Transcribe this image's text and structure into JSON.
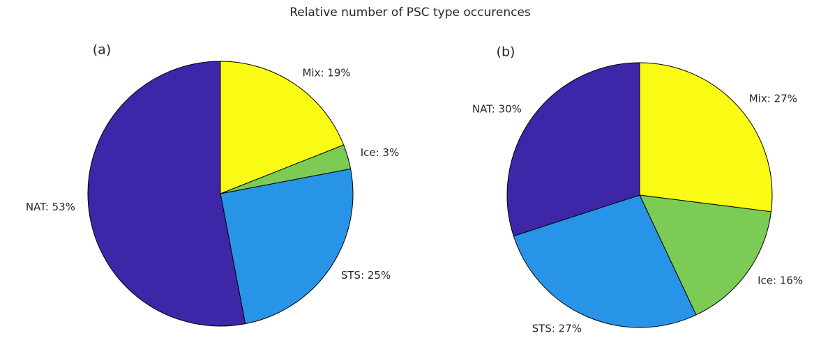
{
  "title": "Relative number of PSC type occurences",
  "chart_data": [
    {
      "type": "pie",
      "title": "(a)",
      "values": [
        19,
        3,
        25,
        53
      ],
      "value_labels": [
        "Mix: 19%",
        "Ice: 3%",
        "STS: 25%",
        "NAT: 53%"
      ],
      "colors": [
        "#f9fb15",
        "#7ccb54",
        "#2894e8",
        "#3e26a8"
      ]
    },
    {
      "type": "pie",
      "title": "(b)",
      "values": [
        27,
        16,
        27,
        30
      ],
      "value_labels": [
        "Mix: 27%",
        "Ice: 16%",
        "STS: 27%",
        "NAT: 30%"
      ],
      "colors": [
        "#f9fb15",
        "#7ccb54",
        "#2894e8",
        "#3e26a8"
      ]
    }
  ]
}
